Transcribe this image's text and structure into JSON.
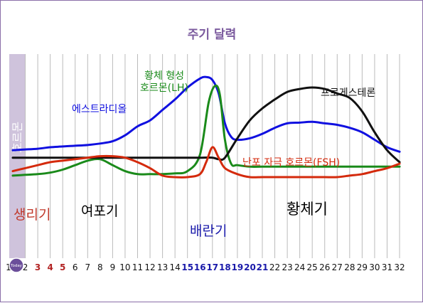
{
  "chart_data": {
    "type": "line",
    "title": "주기 달력",
    "ylabel": "호르몬",
    "x": [
      1,
      2,
      3,
      4,
      5,
      6,
      7,
      8,
      9,
      10,
      11,
      12,
      13,
      14,
      15,
      16,
      17,
      18,
      19,
      20,
      21,
      22,
      23,
      24,
      25,
      26,
      27,
      28,
      29,
      30,
      31,
      32
    ],
    "day_labels": [
      "1",
      "2",
      "3",
      "4",
      "5",
      "6",
      "7",
      "8",
      "9",
      "10",
      "11",
      "12",
      "13",
      "14",
      "15",
      "16",
      "17",
      "18",
      "19",
      "20",
      "21",
      "22",
      "23",
      "24",
      "25",
      "26",
      "27",
      "28",
      "29",
      "30",
      "31",
      "32"
    ],
    "today_badge": "Today",
    "day_colors": {
      "3": "#b22222",
      "4": "#b22222",
      "5": "#b22222",
      "15": "#1a1aaa",
      "16": "#1a1aaa",
      "17": "#1a1aaa",
      "18": "#1a1aaa",
      "19": "#1a1aaa",
      "20": "#1a1aaa",
      "21": "#1a1aaa"
    },
    "ylim": [
      0,
      100
    ],
    "series": [
      {
        "name": "에스트라디올",
        "color": "#1010e0",
        "points": [
          [
            1,
            38
          ],
          [
            2,
            38.5
          ],
          [
            3,
            39
          ],
          [
            4,
            40
          ],
          [
            5,
            40.5
          ],
          [
            6,
            41
          ],
          [
            7,
            41.5
          ],
          [
            8,
            42.5
          ],
          [
            9,
            44
          ],
          [
            10,
            48
          ],
          [
            11,
            54
          ],
          [
            12,
            58
          ],
          [
            13,
            65
          ],
          [
            14,
            72
          ],
          [
            15,
            80
          ],
          [
            16,
            86
          ],
          [
            16.5,
            87
          ],
          [
            17,
            85
          ],
          [
            17.5,
            76
          ],
          [
            18,
            56
          ],
          [
            18.5,
            47
          ],
          [
            19,
            45
          ],
          [
            20,
            46
          ],
          [
            21,
            49
          ],
          [
            22,
            53
          ],
          [
            23,
            56
          ],
          [
            24,
            56.5
          ],
          [
            25,
            57
          ],
          [
            26,
            56
          ],
          [
            27,
            55
          ],
          [
            28,
            53
          ],
          [
            29,
            50
          ],
          [
            30,
            45
          ],
          [
            31,
            40
          ],
          [
            32,
            37
          ]
        ]
      },
      {
        "name": "황체 형성\n호르몬(LH)",
        "color": "#1a8a1a",
        "points": [
          [
            1,
            21
          ],
          [
            2,
            21.5
          ],
          [
            3,
            22
          ],
          [
            4,
            23
          ],
          [
            5,
            25
          ],
          [
            6,
            28
          ],
          [
            7,
            31
          ],
          [
            8,
            32
          ],
          [
            9,
            28
          ],
          [
            10,
            24
          ],
          [
            11,
            22
          ],
          [
            12,
            22
          ],
          [
            13,
            22
          ],
          [
            14,
            22.5
          ],
          [
            15,
            24
          ],
          [
            16,
            35
          ],
          [
            16.7,
            70
          ],
          [
            17.2,
            81
          ],
          [
            17.6,
            75
          ],
          [
            18,
            45
          ],
          [
            18.5,
            29
          ],
          [
            19,
            28
          ],
          [
            20,
            27
          ],
          [
            21,
            27
          ],
          [
            22,
            27
          ],
          [
            23,
            27
          ],
          [
            24,
            27
          ],
          [
            25,
            27
          ],
          [
            26,
            27
          ],
          [
            27,
            27
          ],
          [
            28,
            27
          ],
          [
            29,
            27
          ],
          [
            30,
            27
          ],
          [
            31,
            27
          ],
          [
            32,
            27
          ]
        ]
      },
      {
        "name": "프로게스테론",
        "color": "#111111",
        "points": [
          [
            1,
            33
          ],
          [
            2,
            33
          ],
          [
            3,
            33
          ],
          [
            4,
            33
          ],
          [
            5,
            33
          ],
          [
            6,
            33
          ],
          [
            7,
            33
          ],
          [
            8,
            33
          ],
          [
            9,
            33
          ],
          [
            10,
            33
          ],
          [
            11,
            33
          ],
          [
            12,
            33
          ],
          [
            13,
            33
          ],
          [
            14,
            33
          ],
          [
            15,
            33
          ],
          [
            16,
            33
          ],
          [
            17,
            33
          ],
          [
            17.5,
            32
          ],
          [
            18,
            33
          ],
          [
            19,
            46
          ],
          [
            20,
            58
          ],
          [
            21,
            66
          ],
          [
            22,
            72
          ],
          [
            23,
            77
          ],
          [
            24,
            79
          ],
          [
            25,
            80
          ],
          [
            26,
            79
          ],
          [
            27,
            76
          ],
          [
            28,
            73
          ],
          [
            29,
            64
          ],
          [
            30,
            50
          ],
          [
            31,
            38
          ],
          [
            32,
            30
          ]
        ]
      },
      {
        "name": "난포 자극 호르몬(FSH)",
        "color": "#d42a0c",
        "points": [
          [
            1,
            24
          ],
          [
            2,
            26
          ],
          [
            3,
            28
          ],
          [
            4,
            30
          ],
          [
            5,
            31
          ],
          [
            6,
            32
          ],
          [
            7,
            33
          ],
          [
            8,
            34
          ],
          [
            9,
            34
          ],
          [
            10,
            33
          ],
          [
            11,
            30
          ],
          [
            12,
            26
          ],
          [
            13,
            21
          ],
          [
            14,
            20
          ],
          [
            15,
            20
          ],
          [
            16,
            22
          ],
          [
            16.5,
            30
          ],
          [
            17,
            40
          ],
          [
            17.5,
            33
          ],
          [
            18,
            26
          ],
          [
            19,
            22
          ],
          [
            20,
            20
          ],
          [
            21,
            20
          ],
          [
            22,
            20
          ],
          [
            23,
            20
          ],
          [
            24,
            20
          ],
          [
            25,
            20
          ],
          [
            26,
            20
          ],
          [
            27,
            20
          ],
          [
            28,
            21
          ],
          [
            29,
            22
          ],
          [
            30,
            24
          ],
          [
            31,
            26
          ],
          [
            32,
            29
          ]
        ]
      }
    ],
    "series_labels": [
      {
        "series": 0,
        "text": "에스트라디올"
      },
      {
        "series": 1,
        "text": "황체 형성\n호르몬(LH)"
      },
      {
        "series": 2,
        "text": "프로게스테론"
      },
      {
        "series": 3,
        "text": "난포 자극 호르몬(FSH)"
      }
    ],
    "phases": [
      {
        "text": "생리기",
        "color": "#c0392b"
      },
      {
        "text": "여포기",
        "color": "#000000"
      },
      {
        "text": "배란기",
        "color": "#1a1aaa"
      },
      {
        "text": "황체기",
        "color": "#000000"
      }
    ],
    "grid": true
  },
  "colors": {
    "title": "#7b5a9e",
    "ylabel_bar": "#cfc3dc",
    "ylabel_text": "#ffffff",
    "gridline": "#bbbbbb",
    "today_badge_fill": "#6b4e9a"
  }
}
